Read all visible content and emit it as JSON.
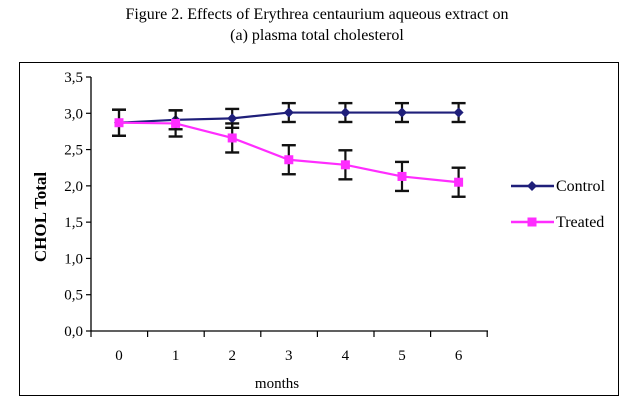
{
  "caption": {
    "line1": "Figure 2. Effects of Erythrea centaurium aqueous extract on",
    "line2": "(a) plasma total cholesterol"
  },
  "chart_data": {
    "type": "line",
    "xlabel": "months",
    "ylabel": "CHOL Total",
    "categories": [
      "0",
      "1",
      "2",
      "3",
      "4",
      "5",
      "6"
    ],
    "x": [
      0,
      1,
      2,
      3,
      4,
      5,
      6
    ],
    "ylim": [
      0.0,
      3.5
    ],
    "yticks": [
      0.0,
      0.5,
      1.0,
      1.5,
      2.0,
      2.5,
      3.0,
      3.5
    ],
    "ytick_labels": [
      "0,0",
      "0,5",
      "1,0",
      "1,5",
      "2,0",
      "2,5",
      "3,0",
      "3,5"
    ],
    "grid": false,
    "legend_position": "right",
    "series": [
      {
        "name": "Control",
        "color": "#1f1f7a",
        "marker": "diamond",
        "values": [
          2.87,
          2.91,
          2.93,
          3.01,
          3.01,
          3.01,
          3.01
        ],
        "errors": [
          0.18,
          0.13,
          0.13,
          0.13,
          0.13,
          0.13,
          0.13
        ]
      },
      {
        "name": "Treated",
        "color": "#ff2dff",
        "marker": "square",
        "values": [
          2.87,
          2.86,
          2.66,
          2.36,
          2.29,
          2.13,
          2.05
        ],
        "errors": [
          0.18,
          0.18,
          0.2,
          0.2,
          0.2,
          0.2,
          0.2
        ]
      }
    ]
  }
}
